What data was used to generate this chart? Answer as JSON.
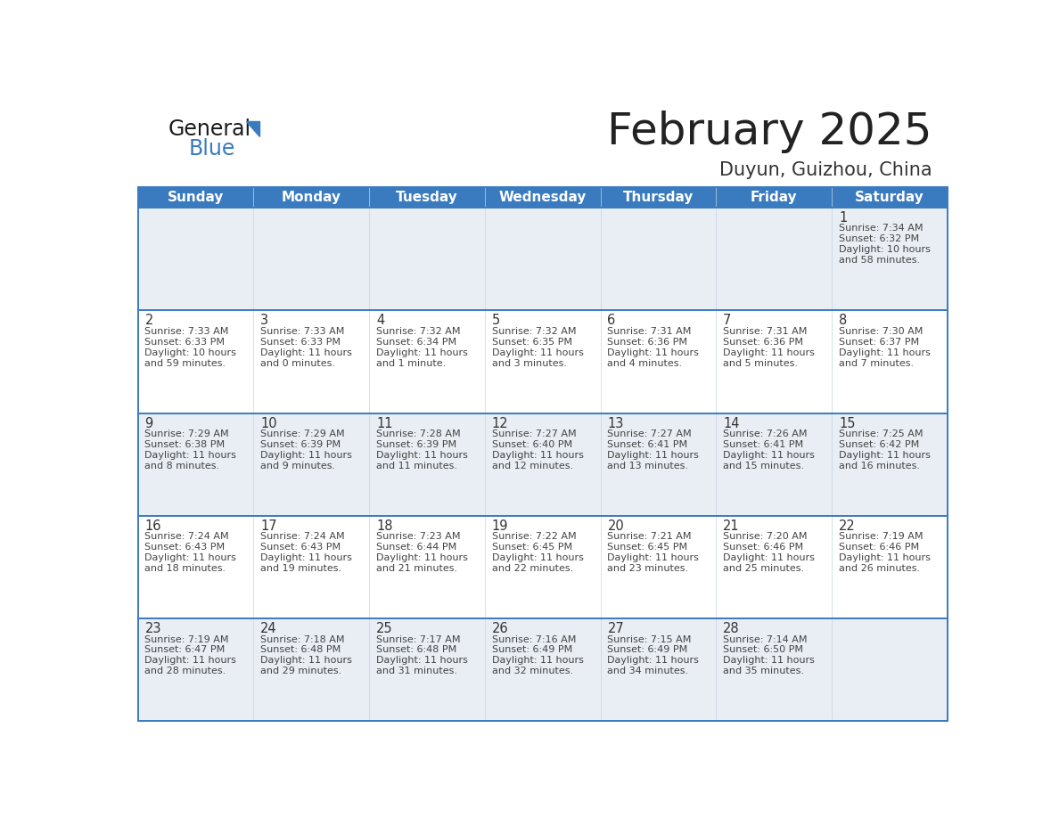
{
  "title": "February 2025",
  "subtitle": "Duyun, Guizhou, China",
  "days_of_week": [
    "Sunday",
    "Monday",
    "Tuesday",
    "Wednesday",
    "Thursday",
    "Friday",
    "Saturday"
  ],
  "header_bg": "#3a7bbf",
  "header_text": "#ffffff",
  "cell_bg_odd": "#e8eef4",
  "cell_bg_even": "#ffffff",
  "divider_color": "#3a7bbf",
  "text_color": "#444444",
  "day_num_color": "#333333",
  "calendar_data": [
    [
      null,
      null,
      null,
      null,
      null,
      null,
      {
        "day": "1",
        "sunrise": "7:34 AM",
        "sunset": "6:32 PM",
        "daylight_line1": "Daylight: 10 hours",
        "daylight_line2": "and 58 minutes."
      }
    ],
    [
      {
        "day": "2",
        "sunrise": "7:33 AM",
        "sunset": "6:33 PM",
        "daylight_line1": "Daylight: 10 hours",
        "daylight_line2": "and 59 minutes."
      },
      {
        "day": "3",
        "sunrise": "7:33 AM",
        "sunset": "6:33 PM",
        "daylight_line1": "Daylight: 11 hours",
        "daylight_line2": "and 0 minutes."
      },
      {
        "day": "4",
        "sunrise": "7:32 AM",
        "sunset": "6:34 PM",
        "daylight_line1": "Daylight: 11 hours",
        "daylight_line2": "and 1 minute."
      },
      {
        "day": "5",
        "sunrise": "7:32 AM",
        "sunset": "6:35 PM",
        "daylight_line1": "Daylight: 11 hours",
        "daylight_line2": "and 3 minutes."
      },
      {
        "day": "6",
        "sunrise": "7:31 AM",
        "sunset": "6:36 PM",
        "daylight_line1": "Daylight: 11 hours",
        "daylight_line2": "and 4 minutes."
      },
      {
        "day": "7",
        "sunrise": "7:31 AM",
        "sunset": "6:36 PM",
        "daylight_line1": "Daylight: 11 hours",
        "daylight_line2": "and 5 minutes."
      },
      {
        "day": "8",
        "sunrise": "7:30 AM",
        "sunset": "6:37 PM",
        "daylight_line1": "Daylight: 11 hours",
        "daylight_line2": "and 7 minutes."
      }
    ],
    [
      {
        "day": "9",
        "sunrise": "7:29 AM",
        "sunset": "6:38 PM",
        "daylight_line1": "Daylight: 11 hours",
        "daylight_line2": "and 8 minutes."
      },
      {
        "day": "10",
        "sunrise": "7:29 AM",
        "sunset": "6:39 PM",
        "daylight_line1": "Daylight: 11 hours",
        "daylight_line2": "and 9 minutes."
      },
      {
        "day": "11",
        "sunrise": "7:28 AM",
        "sunset": "6:39 PM",
        "daylight_line1": "Daylight: 11 hours",
        "daylight_line2": "and 11 minutes."
      },
      {
        "day": "12",
        "sunrise": "7:27 AM",
        "sunset": "6:40 PM",
        "daylight_line1": "Daylight: 11 hours",
        "daylight_line2": "and 12 minutes."
      },
      {
        "day": "13",
        "sunrise": "7:27 AM",
        "sunset": "6:41 PM",
        "daylight_line1": "Daylight: 11 hours",
        "daylight_line2": "and 13 minutes."
      },
      {
        "day": "14",
        "sunrise": "7:26 AM",
        "sunset": "6:41 PM",
        "daylight_line1": "Daylight: 11 hours",
        "daylight_line2": "and 15 minutes."
      },
      {
        "day": "15",
        "sunrise": "7:25 AM",
        "sunset": "6:42 PM",
        "daylight_line1": "Daylight: 11 hours",
        "daylight_line2": "and 16 minutes."
      }
    ],
    [
      {
        "day": "16",
        "sunrise": "7:24 AM",
        "sunset": "6:43 PM",
        "daylight_line1": "Daylight: 11 hours",
        "daylight_line2": "and 18 minutes."
      },
      {
        "day": "17",
        "sunrise": "7:24 AM",
        "sunset": "6:43 PM",
        "daylight_line1": "Daylight: 11 hours",
        "daylight_line2": "and 19 minutes."
      },
      {
        "day": "18",
        "sunrise": "7:23 AM",
        "sunset": "6:44 PM",
        "daylight_line1": "Daylight: 11 hours",
        "daylight_line2": "and 21 minutes."
      },
      {
        "day": "19",
        "sunrise": "7:22 AM",
        "sunset": "6:45 PM",
        "daylight_line1": "Daylight: 11 hours",
        "daylight_line2": "and 22 minutes."
      },
      {
        "day": "20",
        "sunrise": "7:21 AM",
        "sunset": "6:45 PM",
        "daylight_line1": "Daylight: 11 hours",
        "daylight_line2": "and 23 minutes."
      },
      {
        "day": "21",
        "sunrise": "7:20 AM",
        "sunset": "6:46 PM",
        "daylight_line1": "Daylight: 11 hours",
        "daylight_line2": "and 25 minutes."
      },
      {
        "day": "22",
        "sunrise": "7:19 AM",
        "sunset": "6:46 PM",
        "daylight_line1": "Daylight: 11 hours",
        "daylight_line2": "and 26 minutes."
      }
    ],
    [
      {
        "day": "23",
        "sunrise": "7:19 AM",
        "sunset": "6:47 PM",
        "daylight_line1": "Daylight: 11 hours",
        "daylight_line2": "and 28 minutes."
      },
      {
        "day": "24",
        "sunrise": "7:18 AM",
        "sunset": "6:48 PM",
        "daylight_line1": "Daylight: 11 hours",
        "daylight_line2": "and 29 minutes."
      },
      {
        "day": "25",
        "sunrise": "7:17 AM",
        "sunset": "6:48 PM",
        "daylight_line1": "Daylight: 11 hours",
        "daylight_line2": "and 31 minutes."
      },
      {
        "day": "26",
        "sunrise": "7:16 AM",
        "sunset": "6:49 PM",
        "daylight_line1": "Daylight: 11 hours",
        "daylight_line2": "and 32 minutes."
      },
      {
        "day": "27",
        "sunrise": "7:15 AM",
        "sunset": "6:49 PM",
        "daylight_line1": "Daylight: 11 hours",
        "daylight_line2": "and 34 minutes."
      },
      {
        "day": "28",
        "sunrise": "7:14 AM",
        "sunset": "6:50 PM",
        "daylight_line1": "Daylight: 11 hours",
        "daylight_line2": "and 35 minutes."
      },
      null
    ]
  ]
}
